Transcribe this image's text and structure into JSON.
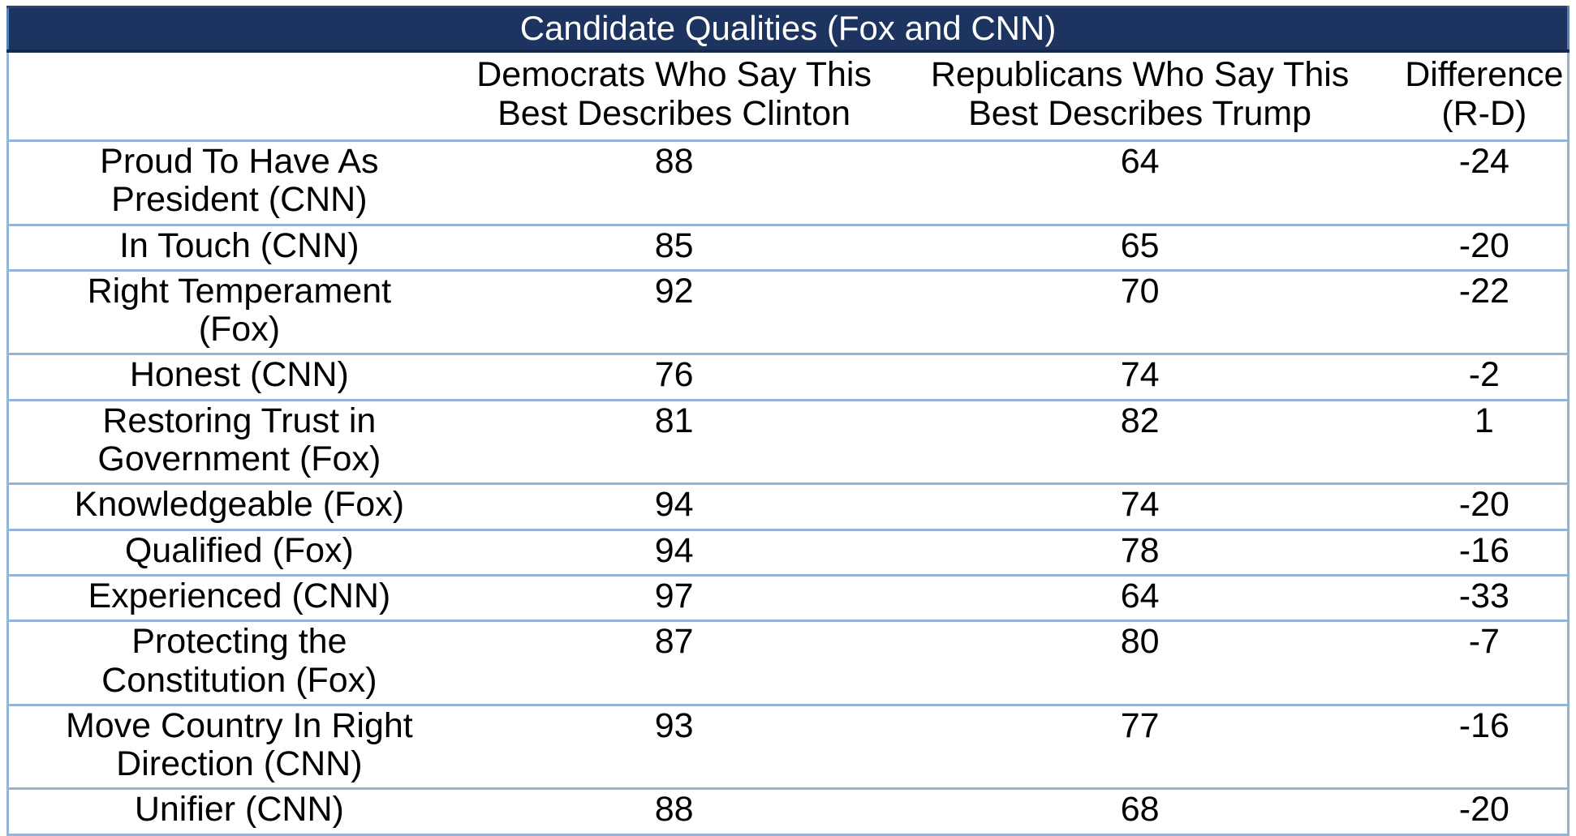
{
  "title": "Candidate Qualities (Fox and CNN)",
  "header": {
    "row_label": "",
    "dem": "Democrats Who Say This\nBest Describes Clinton",
    "rep": "Republicans Who Say This\nBest Describes Trump",
    "diff": "Difference\n(R-D)"
  },
  "rows": [
    {
      "label": "Proud To Have As\nPresident (CNN)",
      "dem": "88",
      "rep": "64",
      "diff": "-24"
    },
    {
      "label": "In Touch (CNN)",
      "dem": "85",
      "rep": "65",
      "diff": "-20"
    },
    {
      "label": "Right Temperament\n(Fox)",
      "dem": "92",
      "rep": "70",
      "diff": "-22"
    },
    {
      "label": "Honest (CNN)",
      "dem": "76",
      "rep": "74",
      "diff": "-2"
    },
    {
      "label": "Restoring Trust in\nGovernment (Fox)",
      "dem": "81",
      "rep": "82",
      "diff": "1"
    },
    {
      "label": "Knowledgeable (Fox)",
      "dem": "94",
      "rep": "74",
      "diff": "-20"
    },
    {
      "label": "Qualified (Fox)",
      "dem": "94",
      "rep": "78",
      "diff": "-16"
    },
    {
      "label": "Experienced (CNN)",
      "dem": "97",
      "rep": "64",
      "diff": "-33"
    },
    {
      "label": "Protecting the\nConstitution (Fox)",
      "dem": "87",
      "rep": "80",
      "diff": "-7"
    },
    {
      "label": "Move Country In Right\nDirection (CNN)",
      "dem": "93",
      "rep": "77",
      "diff": "-16"
    },
    {
      "label": "Unifier (CNN)",
      "dem": "88",
      "rep": "68",
      "diff": "-20"
    }
  ],
  "colors": {
    "title_bg": "#1D3461",
    "title_text": "#FFFFFF",
    "grid_border": "#95B3D7",
    "title_side_border": "#4F81BD",
    "body_text": "#000000",
    "background": "#FFFFFF"
  },
  "chart_data": {
    "type": "table",
    "title": "Candidate Qualities (Fox and CNN)",
    "categories": [
      "Proud To Have As President (CNN)",
      "In Touch (CNN)",
      "Right Temperament (Fox)",
      "Honest (CNN)",
      "Restoring Trust in Government (Fox)",
      "Knowledgeable (Fox)",
      "Qualified (Fox)",
      "Experienced (CNN)",
      "Protecting the Constitution (Fox)",
      "Move Country In Right Direction (CNN)",
      "Unifier (CNN)"
    ],
    "series": [
      {
        "name": "Democrats Who Say This Best Describes Clinton",
        "values": [
          88,
          85,
          92,
          76,
          81,
          94,
          94,
          97,
          87,
          93,
          88
        ]
      },
      {
        "name": "Republicans Who Say This Best Describes Trump",
        "values": [
          64,
          65,
          70,
          74,
          82,
          74,
          78,
          64,
          80,
          77,
          68
        ]
      },
      {
        "name": "Difference (R-D)",
        "values": [
          -24,
          -20,
          -22,
          -2,
          1,
          -20,
          -16,
          -33,
          -7,
          -16,
          -20
        ]
      }
    ]
  }
}
